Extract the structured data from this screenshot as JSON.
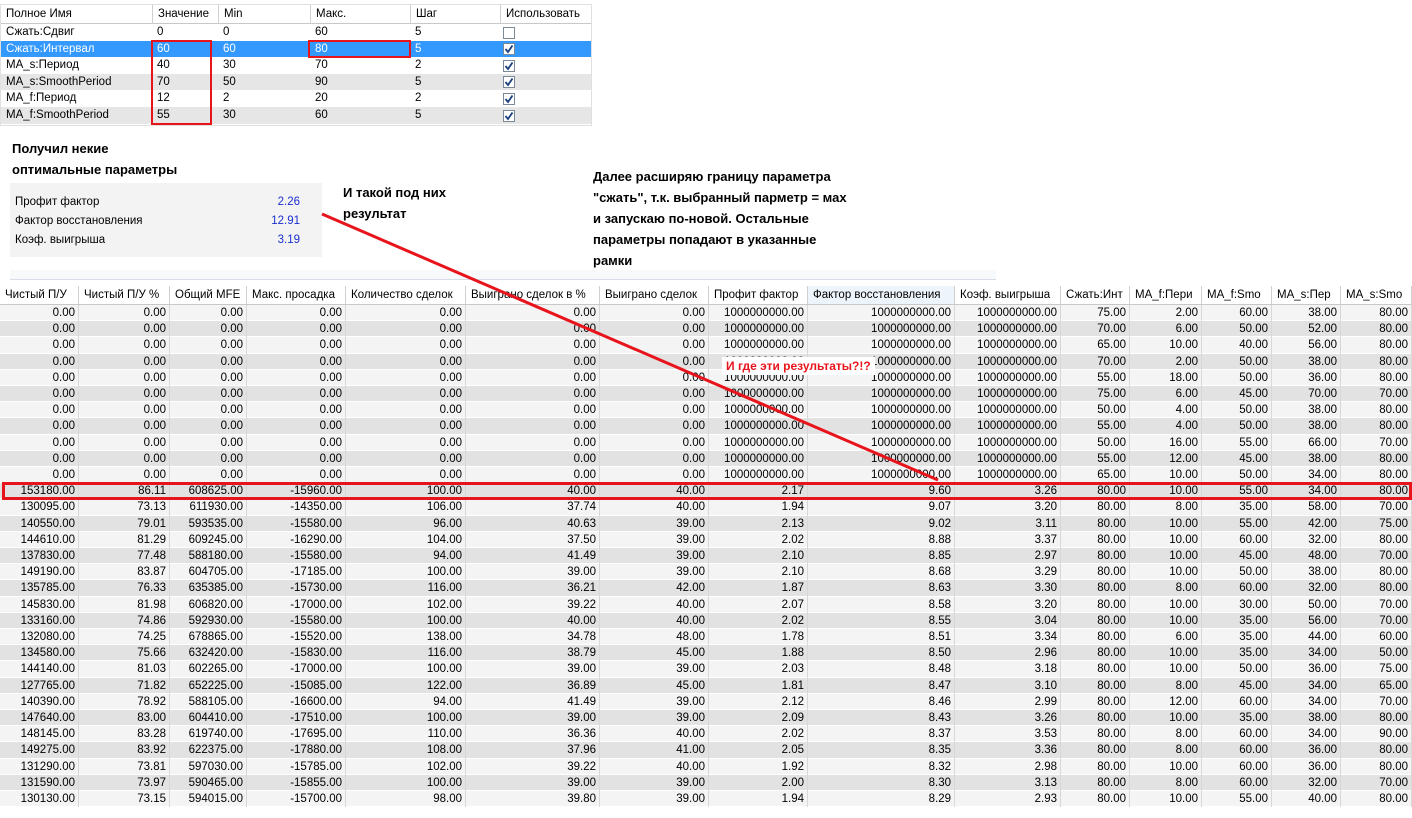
{
  "params_table": {
    "columns": [
      "Полное Имя",
      "Значение",
      "Min",
      "Макс.",
      "Шаг",
      "Использовать"
    ],
    "rows": [
      [
        "Сжать:Сдвиг",
        "0",
        "0",
        "60",
        "5"
      ],
      [
        "Сжать:Интервал",
        "60",
        "60",
        "80",
        "5"
      ],
      [
        "MA_s:Период",
        "40",
        "30",
        "70",
        "2"
      ],
      [
        "MA_s:SmoothPeriod",
        "70",
        "50",
        "90",
        "5"
      ],
      [
        "MA_f:Период",
        "12",
        "2",
        "20",
        "2"
      ],
      [
        "MA_f:SmoothPeriod",
        "55",
        "30",
        "60",
        "5"
      ]
    ],
    "use": [
      false,
      true,
      true,
      true,
      true,
      true
    ],
    "selected_row": 1
  },
  "notes": {
    "found": [
      "Получил некие",
      "оптимальные параметры"
    ],
    "result_label": [
      "И такой под них",
      "результат"
    ],
    "next_step": [
      "Далее расширяю границу параметра",
      "\"сжать\", т.к. выбранный парметр = мах",
      "и запускаю по-новой. Остальные",
      "параметры попадают в указанные",
      "рамки"
    ],
    "question": "И где эти результаты?!?"
  },
  "summary": [
    {
      "label": "Профит фактор",
      "value": "2.26"
    },
    {
      "label": "Фактор восстановления",
      "value": "12.91"
    },
    {
      "label": "Коэф. выигрыша",
      "value": "3.19"
    }
  ],
  "results_table": {
    "columns": [
      "Чистый П/У",
      "Чистый П/У %",
      "Общий MFE",
      "Макс. просадка",
      "Количество сделок",
      "Выиграно сделок в %",
      "Выиграно сделок",
      "Профит фактор",
      "Фактор восстановления",
      "Коэф. выигрыша",
      "Сжать:Инт",
      "MA_f:Пери",
      "MA_f:Smo",
      "MA_s:Пер",
      "MA_s:Smo"
    ],
    "rows": [
      [
        "0.00",
        "0.00",
        "0.00",
        "0.00",
        "0.00",
        "0.00",
        "0.00",
        "1000000000.00",
        "1000000000.00",
        "1000000000.00",
        "75.00",
        "2.00",
        "60.00",
        "38.00",
        "80.00"
      ],
      [
        "0.00",
        "0.00",
        "0.00",
        "0.00",
        "0.00",
        "0.00",
        "0.00",
        "1000000000.00",
        "1000000000.00",
        "1000000000.00",
        "70.00",
        "6.00",
        "50.00",
        "52.00",
        "80.00"
      ],
      [
        "0.00",
        "0.00",
        "0.00",
        "0.00",
        "0.00",
        "0.00",
        "0.00",
        "1000000000.00",
        "1000000000.00",
        "1000000000.00",
        "65.00",
        "10.00",
        "40.00",
        "56.00",
        "80.00"
      ],
      [
        "0.00",
        "0.00",
        "0.00",
        "0.00",
        "0.00",
        "0.00",
        "0.00",
        "1000000000.00",
        "1000000000.00",
        "1000000000.00",
        "70.00",
        "2.00",
        "50.00",
        "38.00",
        "80.00"
      ],
      [
        "0.00",
        "0.00",
        "0.00",
        "0.00",
        "0.00",
        "0.00",
        "0.00",
        "1000000000.00",
        "1000000000.00",
        "1000000000.00",
        "55.00",
        "18.00",
        "50.00",
        "36.00",
        "80.00"
      ],
      [
        "0.00",
        "0.00",
        "0.00",
        "0.00",
        "0.00",
        "0.00",
        "0.00",
        "1000000000.00",
        "1000000000.00",
        "1000000000.00",
        "75.00",
        "6.00",
        "45.00",
        "70.00",
        "70.00"
      ],
      [
        "0.00",
        "0.00",
        "0.00",
        "0.00",
        "0.00",
        "0.00",
        "0.00",
        "1000000000.00",
        "1000000000.00",
        "1000000000.00",
        "50.00",
        "4.00",
        "50.00",
        "38.00",
        "80.00"
      ],
      [
        "0.00",
        "0.00",
        "0.00",
        "0.00",
        "0.00",
        "0.00",
        "0.00",
        "1000000000.00",
        "1000000000.00",
        "1000000000.00",
        "55.00",
        "4.00",
        "50.00",
        "38.00",
        "80.00"
      ],
      [
        "0.00",
        "0.00",
        "0.00",
        "0.00",
        "0.00",
        "0.00",
        "0.00",
        "1000000000.00",
        "1000000000.00",
        "1000000000.00",
        "50.00",
        "16.00",
        "55.00",
        "66.00",
        "70.00"
      ],
      [
        "0.00",
        "0.00",
        "0.00",
        "0.00",
        "0.00",
        "0.00",
        "0.00",
        "1000000000.00",
        "1000000000.00",
        "1000000000.00",
        "55.00",
        "12.00",
        "45.00",
        "38.00",
        "80.00"
      ],
      [
        "0.00",
        "0.00",
        "0.00",
        "0.00",
        "0.00",
        "0.00",
        "0.00",
        "1000000000.00",
        "1000000000.00",
        "1000000000.00",
        "65.00",
        "10.00",
        "50.00",
        "34.00",
        "80.00"
      ],
      [
        "153180.00",
        "86.11",
        "608625.00",
        "-15960.00",
        "100.00",
        "40.00",
        "40.00",
        "2.17",
        "9.60",
        "3.26",
        "80.00",
        "10.00",
        "55.00",
        "34.00",
        "80.00"
      ],
      [
        "130095.00",
        "73.13",
        "611930.00",
        "-14350.00",
        "106.00",
        "37.74",
        "40.00",
        "1.94",
        "9.07",
        "3.20",
        "80.00",
        "8.00",
        "35.00",
        "58.00",
        "70.00"
      ],
      [
        "140550.00",
        "79.01",
        "593535.00",
        "-15580.00",
        "96.00",
        "40.63",
        "39.00",
        "2.13",
        "9.02",
        "3.11",
        "80.00",
        "10.00",
        "55.00",
        "42.00",
        "75.00"
      ],
      [
        "144610.00",
        "81.29",
        "609245.00",
        "-16290.00",
        "104.00",
        "37.50",
        "39.00",
        "2.02",
        "8.88",
        "3.37",
        "80.00",
        "10.00",
        "60.00",
        "32.00",
        "80.00"
      ],
      [
        "137830.00",
        "77.48",
        "588180.00",
        "-15580.00",
        "94.00",
        "41.49",
        "39.00",
        "2.10",
        "8.85",
        "2.97",
        "80.00",
        "10.00",
        "45.00",
        "48.00",
        "70.00"
      ],
      [
        "149190.00",
        "83.87",
        "604705.00",
        "-17185.00",
        "100.00",
        "39.00",
        "39.00",
        "2.10",
        "8.68",
        "3.29",
        "80.00",
        "10.00",
        "50.00",
        "38.00",
        "80.00"
      ],
      [
        "135785.00",
        "76.33",
        "635385.00",
        "-15730.00",
        "116.00",
        "36.21",
        "42.00",
        "1.87",
        "8.63",
        "3.30",
        "80.00",
        "8.00",
        "60.00",
        "32.00",
        "80.00"
      ],
      [
        "145830.00",
        "81.98",
        "606820.00",
        "-17000.00",
        "102.00",
        "39.22",
        "40.00",
        "2.07",
        "8.58",
        "3.20",
        "80.00",
        "10.00",
        "30.00",
        "50.00",
        "70.00"
      ],
      [
        "133160.00",
        "74.86",
        "592930.00",
        "-15580.00",
        "100.00",
        "40.00",
        "40.00",
        "2.02",
        "8.55",
        "3.04",
        "80.00",
        "10.00",
        "35.00",
        "56.00",
        "70.00"
      ],
      [
        "132080.00",
        "74.25",
        "678865.00",
        "-15520.00",
        "138.00",
        "34.78",
        "48.00",
        "1.78",
        "8.51",
        "3.34",
        "80.00",
        "6.00",
        "35.00",
        "44.00",
        "60.00"
      ],
      [
        "134580.00",
        "75.66",
        "632420.00",
        "-15830.00",
        "116.00",
        "38.79",
        "45.00",
        "1.88",
        "8.50",
        "2.96",
        "80.00",
        "10.00",
        "35.00",
        "34.00",
        "50.00"
      ],
      [
        "144140.00",
        "81.03",
        "602265.00",
        "-17000.00",
        "100.00",
        "39.00",
        "39.00",
        "2.03",
        "8.48",
        "3.18",
        "80.00",
        "10.00",
        "50.00",
        "36.00",
        "75.00"
      ],
      [
        "127765.00",
        "71.82",
        "652225.00",
        "-15085.00",
        "122.00",
        "36.89",
        "45.00",
        "1.81",
        "8.47",
        "3.10",
        "80.00",
        "8.00",
        "45.00",
        "34.00",
        "65.00"
      ],
      [
        "140390.00",
        "78.92",
        "588105.00",
        "-16600.00",
        "94.00",
        "41.49",
        "39.00",
        "2.12",
        "8.46",
        "2.99",
        "80.00",
        "12.00",
        "60.00",
        "34.00",
        "70.00"
      ],
      [
        "147640.00",
        "83.00",
        "604410.00",
        "-17510.00",
        "100.00",
        "39.00",
        "39.00",
        "2.09",
        "8.43",
        "3.26",
        "80.00",
        "10.00",
        "35.00",
        "38.00",
        "80.00"
      ],
      [
        "148145.00",
        "83.28",
        "619740.00",
        "-17695.00",
        "110.00",
        "36.36",
        "40.00",
        "2.02",
        "8.37",
        "3.53",
        "80.00",
        "8.00",
        "60.00",
        "34.00",
        "90.00"
      ],
      [
        "149275.00",
        "83.92",
        "622375.00",
        "-17880.00",
        "108.00",
        "37.96",
        "41.00",
        "2.05",
        "8.35",
        "3.36",
        "80.00",
        "8.00",
        "60.00",
        "36.00",
        "80.00"
      ],
      [
        "131290.00",
        "73.81",
        "597030.00",
        "-15785.00",
        "102.00",
        "39.22",
        "40.00",
        "1.92",
        "8.32",
        "2.98",
        "80.00",
        "10.00",
        "60.00",
        "36.00",
        "80.00"
      ],
      [
        "131590.00",
        "73.97",
        "590465.00",
        "-15855.00",
        "100.00",
        "39.00",
        "39.00",
        "2.00",
        "8.30",
        "3.13",
        "80.00",
        "8.00",
        "60.00",
        "32.00",
        "70.00"
      ],
      [
        "130130.00",
        "73.15",
        "594015.00",
        "-15700.00",
        "98.00",
        "39.80",
        "39.00",
        "1.94",
        "8.29",
        "2.93",
        "80.00",
        "10.00",
        "55.00",
        "40.00",
        "80.00"
      ]
    ],
    "highlight_row": 11
  }
}
